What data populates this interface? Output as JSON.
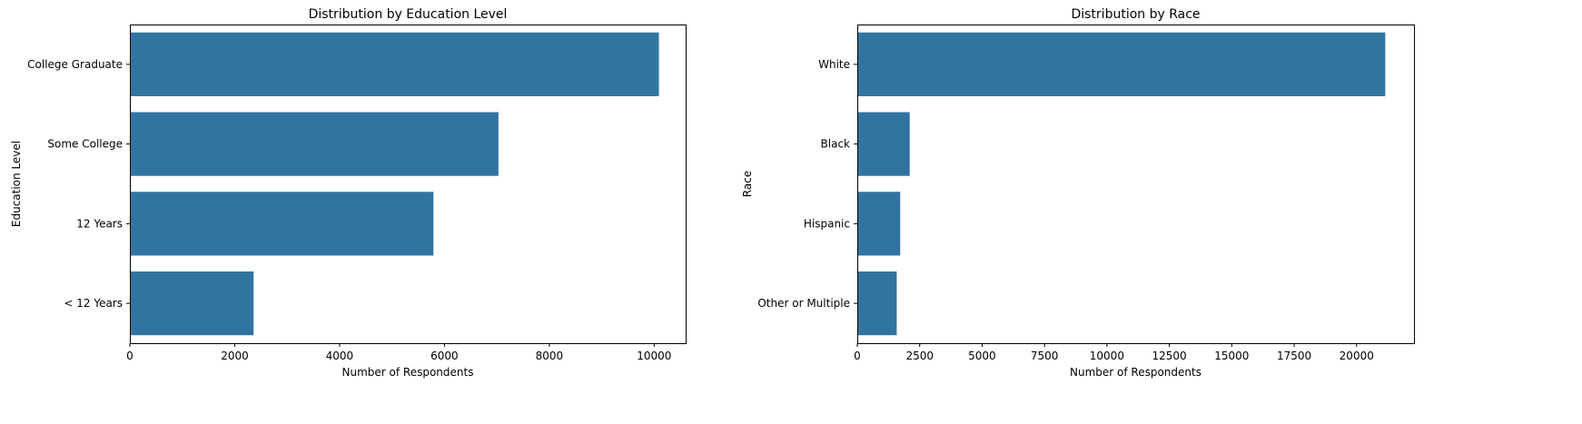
{
  "chart_data": [
    {
      "type": "bar",
      "orientation": "horizontal",
      "title": "Distribution by Education Level",
      "xlabel": "Number of Respondents",
      "ylabel": "Education Level",
      "categories": [
        "College Graduate",
        "Some College",
        "12 Years",
        "< 12 Years"
      ],
      "values": [
        10090,
        7030,
        5790,
        2360
      ],
      "xlim": [
        0,
        10600
      ],
      "xticks": [
        0,
        2000,
        4000,
        6000,
        8000,
        10000
      ],
      "xtick_labels": [
        "0",
        "2000",
        "4000",
        "6000",
        "8000",
        "10000"
      ],
      "color": "#3274a1",
      "grid": false
    },
    {
      "type": "bar",
      "orientation": "horizontal",
      "title": "Distribution by Race",
      "xlabel": "Number of Respondents",
      "ylabel": "Race",
      "categories": [
        "White",
        "Black",
        "Hispanic",
        "Other or Multiple"
      ],
      "values": [
        21150,
        2100,
        1720,
        1580
      ],
      "xlim": [
        0,
        22300
      ],
      "xticks": [
        0,
        2500,
        5000,
        7500,
        10000,
        12500,
        15000,
        17500,
        20000
      ],
      "xtick_labels": [
        "0",
        "2500",
        "5000",
        "7500",
        "10000",
        "12500",
        "15000",
        "17500",
        "20000"
      ],
      "color": "#3274a1",
      "grid": false
    }
  ]
}
